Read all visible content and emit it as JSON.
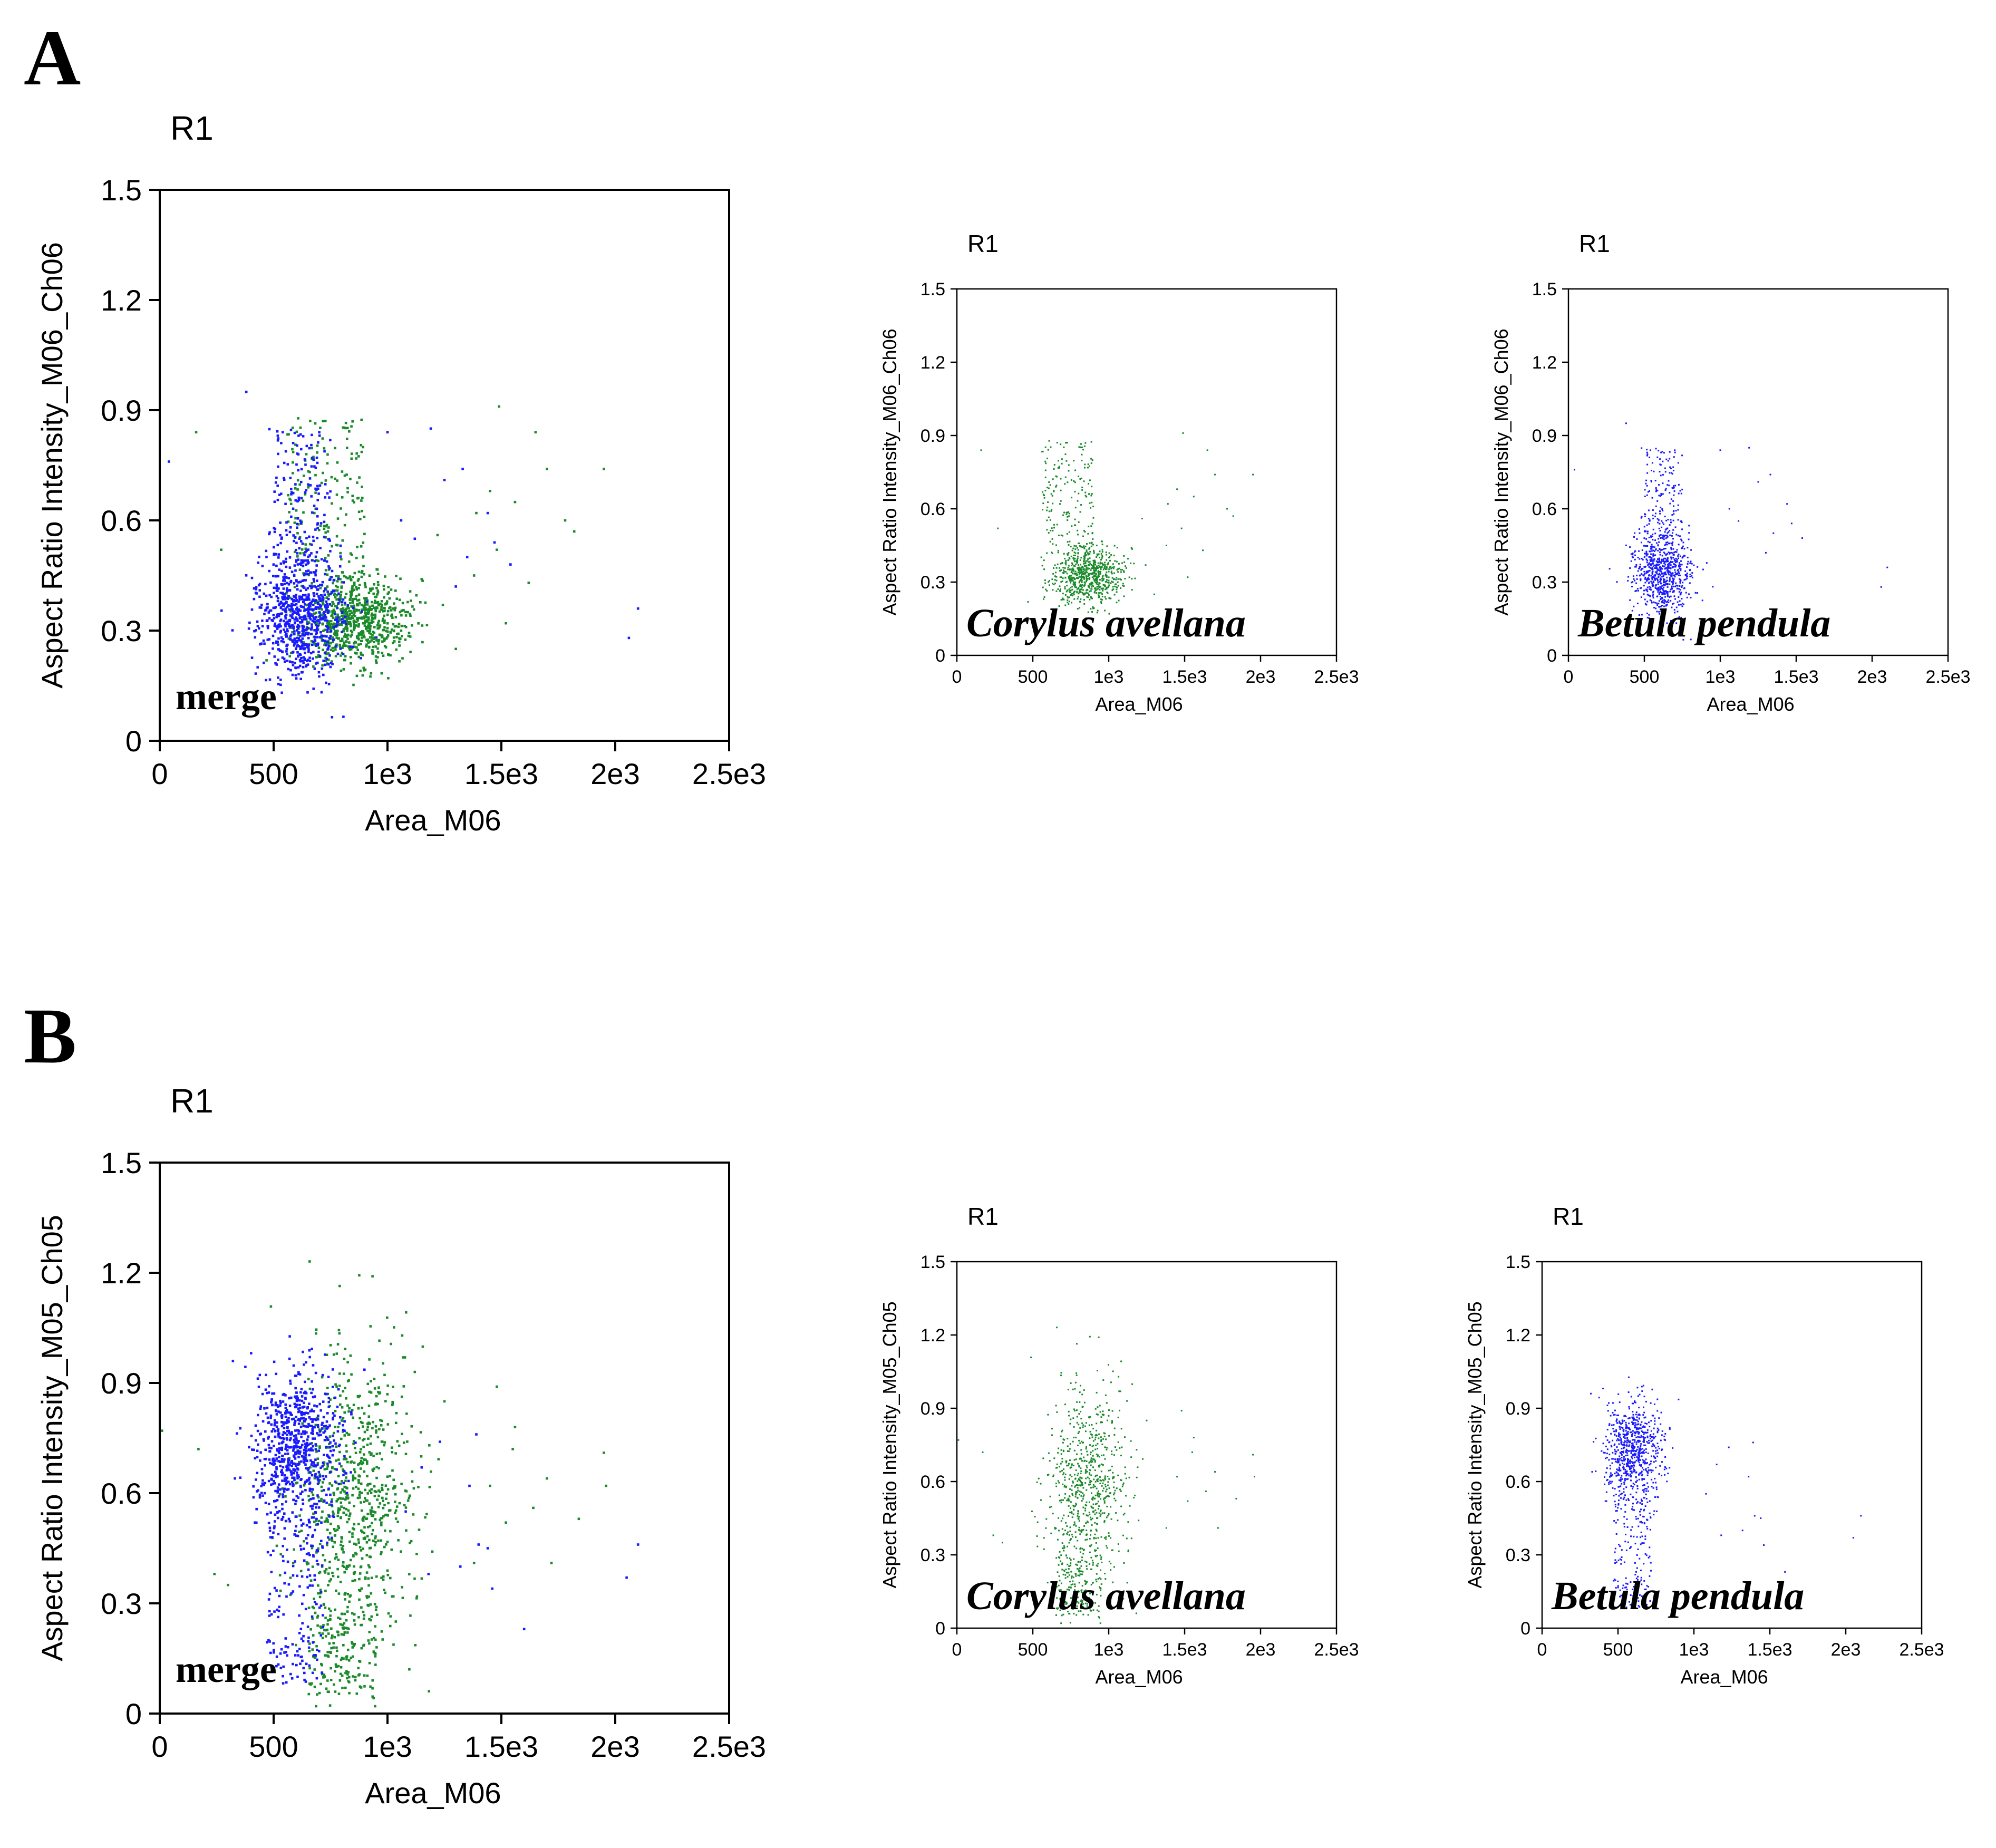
{
  "panels": [
    {
      "letter": "A",
      "ylabel": "Aspect Ratio Intensity_M06_Ch06",
      "plots": [
        {
          "id": "A-merge",
          "title": "R1",
          "annotation": "merge",
          "species": [
            "corylus",
            "betula"
          ]
        },
        {
          "id": "A-corylus",
          "title": "R1",
          "annotation": "Corylus avellana",
          "species": [
            "corylus"
          ]
        },
        {
          "id": "A-betula",
          "title": "R1",
          "annotation": "Betula pendula",
          "species": [
            "betula"
          ]
        }
      ]
    },
    {
      "letter": "B",
      "ylabel": "Aspect Ratio Intensity_M05_Ch05",
      "plots": [
        {
          "id": "B-merge",
          "title": "R1",
          "annotation": "merge",
          "species": [
            "corylus",
            "betula"
          ]
        },
        {
          "id": "B-corylus",
          "title": "R1",
          "annotation": "Corylus avellana",
          "species": [
            "corylus"
          ]
        },
        {
          "id": "B-betula",
          "title": "R1",
          "annotation": "Betula pendula",
          "species": [
            "betula"
          ]
        }
      ]
    }
  ],
  "axes": {
    "xlabel": "Area_M06",
    "xlim": [
      0,
      2500
    ],
    "ylim": [
      0,
      1.5
    ],
    "xticks": [
      0,
      500,
      1000,
      1500,
      2000,
      2500
    ],
    "xtick_labels": [
      "0",
      "500",
      "1e3",
      "1.5e3",
      "2e3",
      "2.5e3"
    ],
    "yticks": [
      0,
      0.3,
      0.6,
      0.9,
      1.2,
      1.5
    ],
    "ytick_labels": [
      "0",
      "0.3",
      "0.6",
      "0.9",
      "1.2",
      "1.5"
    ]
  },
  "colors": {
    "corylus": "#1b8a2a",
    "betula": "#1a1aff",
    "axis": "#000000"
  },
  "chart_data": [
    {
      "type": "scatter",
      "panel": "A",
      "title": "R1",
      "xlabel": "Area_M06",
      "ylabel": "Aspect Ratio Intensity_M06_Ch06",
      "xlim": [
        0,
        2500
      ],
      "ylim": [
        0,
        1.5
      ],
      "grid": false,
      "series": [
        {
          "name": "Corylus avellana",
          "color": "#1b8a2a",
          "count": 900,
          "core": {
            "x_mean": 860,
            "x_sd": 120,
            "y_mean": 0.33,
            "y_sd": 0.06
          },
          "tail": {
            "x_range": [
              560,
              900
            ],
            "y_range": [
              0.45,
              0.88
            ]
          },
          "outliers": [
            [
              160,
              0.84
            ],
            [
              270,
              0.52
            ],
            [
              1490,
              0.91
            ],
            [
              1650,
              0.84
            ],
            [
              1700,
              0.74
            ],
            [
              1950,
              0.74
            ],
            [
              1450,
              0.68
            ],
            [
              1560,
              0.65
            ],
            [
              1780,
              0.6
            ],
            [
              1820,
              0.57
            ],
            [
              1480,
              0.52
            ],
            [
              1380,
              0.45
            ],
            [
              1620,
              0.43
            ],
            [
              1520,
              0.32
            ],
            [
              1300,
              0.25
            ],
            [
              1150,
              0.44
            ],
            [
              1220,
              0.56
            ],
            [
              1390,
              0.62
            ]
          ]
        },
        {
          "name": "Betula pendula",
          "color": "#1a1aff",
          "count": 900,
          "core": {
            "x_mean": 620,
            "x_sd": 95,
            "y_mean": 0.34,
            "y_sd": 0.08
          },
          "tail": {
            "x_range": [
              480,
              750
            ],
            "y_range": [
              0.45,
              0.85
            ]
          },
          "outliers": [
            [
              40,
              0.76
            ],
            [
              380,
              0.95
            ],
            [
              540,
              0.84
            ],
            [
              1000,
              0.84
            ],
            [
              1190,
              0.85
            ],
            [
              1250,
              0.71
            ],
            [
              1330,
              0.74
            ],
            [
              1440,
              0.62
            ],
            [
              1470,
              0.54
            ],
            [
              1350,
              0.5
            ],
            [
              1060,
              0.6
            ],
            [
              1120,
              0.55
            ],
            [
              2060,
              0.28
            ],
            [
              2100,
              0.36
            ],
            [
              1540,
              0.48
            ],
            [
              1300,
              0.42
            ]
          ]
        }
      ]
    },
    {
      "type": "scatter",
      "panel": "B",
      "title": "R1",
      "xlabel": "Area_M06",
      "ylabel": "Aspect Ratio Intensity_M05_Ch05",
      "xlim": [
        0,
        2500
      ],
      "ylim": [
        0,
        1.5
      ],
      "grid": false,
      "series": [
        {
          "name": "Corylus avellana",
          "color": "#1b8a2a",
          "count": 900,
          "core": {
            "x_mean": 850,
            "x_sd": 130,
            "y_mean": 0.58,
            "y_sd": 0.2
          },
          "tail": {
            "x_range": [
              650,
              950
            ],
            "y_range": [
              0.05,
              0.3
            ]
          },
          "outliers": [
            [
              10,
              0.77
            ],
            [
              170,
              0.72
            ],
            [
              240,
              0.38
            ],
            [
              300,
              0.35
            ],
            [
              1250,
              0.85
            ],
            [
              1480,
              0.89
            ],
            [
              1560,
              0.78
            ],
            [
              1550,
              0.72
            ],
            [
              1700,
              0.64
            ],
            [
              1950,
              0.71
            ],
            [
              1960,
              0.62
            ],
            [
              1450,
              0.62
            ],
            [
              1520,
              0.52
            ],
            [
              1640,
              0.56
            ],
            [
              1840,
              0.53
            ],
            [
              1720,
              0.41
            ],
            [
              1380,
              0.41
            ],
            [
              1120,
              0.93
            ]
          ]
        },
        {
          "name": "Betula pendula",
          "color": "#1a1aff",
          "count": 900,
          "core": {
            "x_mean": 600,
            "x_sd": 90,
            "y_mean": 0.72,
            "y_sd": 0.11
          },
          "tail": {
            "x_range": [
              470,
              720
            ],
            "y_range": [
              0.08,
              0.55
            ]
          },
          "outliers": [
            [
              330,
              0.64
            ],
            [
              1150,
              0.67
            ],
            [
              1230,
              0.74
            ],
            [
              1360,
              0.62
            ],
            [
              1390,
              0.76
            ],
            [
              1400,
              0.46
            ],
            [
              1440,
              0.45
            ],
            [
              1320,
              0.4
            ],
            [
              1460,
              0.34
            ],
            [
              1600,
              0.23
            ],
            [
              2050,
              0.37
            ],
            [
              2100,
              0.46
            ],
            [
              1080,
              0.55
            ],
            [
              1180,
              0.38
            ]
          ]
        }
      ]
    }
  ]
}
